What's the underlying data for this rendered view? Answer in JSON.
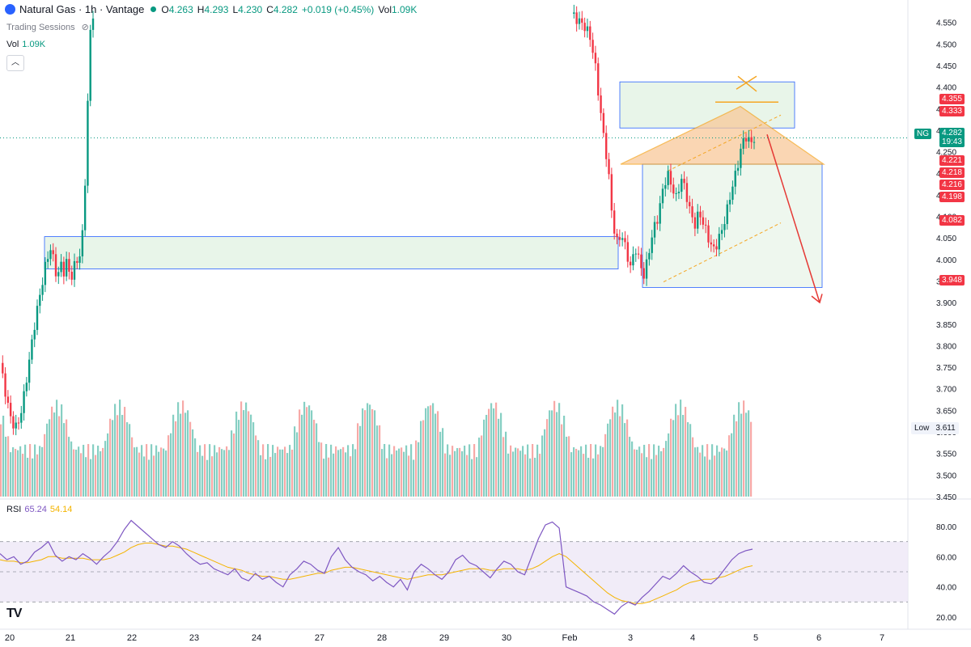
{
  "header": {
    "symbol": "Natural Gas · 1h · Vantage",
    "o_label": "O",
    "o_value": "4.263",
    "h_label": "H",
    "h_value": "4.293",
    "l_label": "L",
    "l_value": "4.230",
    "c_label": "C",
    "c_value": "4.282",
    "change": "+0.019 (+0.45%)",
    "vol_label": "Vol",
    "vol_value": "1.09K"
  },
  "trading_sessions": "Trading Sessions",
  "volume_indicator": {
    "label": "Vol",
    "value": "1.09K"
  },
  "collapse_icon": "chevron-up-icon",
  "rsi": {
    "label": "RSI",
    "value": "65.24",
    "ma_value": "54.14"
  },
  "watermark": "TV",
  "colors": {
    "up": "#089981",
    "down": "#f23645",
    "zone_fill": "#e8f5e9",
    "zone_border": "#2962ff",
    "triangle": "#f5a623",
    "arrow": "#e53935",
    "rsi": "#7e57c2",
    "rsi_ma": "#f4b400"
  },
  "price_labels": {
    "l4355": "4.355",
    "l4333": "4.333",
    "l4221": "4.221",
    "l4218": "4.218",
    "l4216": "4.216",
    "l4198": "4.198",
    "l4082": "4.082",
    "l3948": "3.948",
    "ng": "NG",
    "current": "4.282",
    "countdown": "19:43",
    "low_label": "Low",
    "low_value": "3.611"
  },
  "chart_data": {
    "type": "candlestick",
    "price_axis_ticks": [
      "4.550",
      "4.500",
      "4.450",
      "4.400",
      "4.350",
      "4.300",
      "4.250",
      "4.200",
      "4.150",
      "4.100",
      "4.050",
      "4.000",
      "3.950",
      "3.900",
      "3.850",
      "3.800",
      "3.750",
      "3.700",
      "3.650",
      "3.600",
      "3.550",
      "3.500",
      "3.450"
    ],
    "price_range": [
      3.45,
      4.57
    ],
    "rsi_axis_ticks": [
      "80.00",
      "60.00",
      "40.00",
      "20.00"
    ],
    "rsi_range": [
      15,
      90
    ],
    "rsi_bands": [
      30,
      70
    ],
    "x_axis_labels": [
      "20",
      "21",
      "22",
      "23",
      "24",
      "27",
      "28",
      "29",
      "30",
      "Feb",
      "3",
      "4",
      "5",
      "6",
      "7"
    ],
    "price_path": [
      [
        0,
        3.76
      ],
      [
        1,
        3.72
      ],
      [
        2,
        3.68
      ],
      [
        3,
        3.64
      ],
      [
        4,
        3.62
      ],
      [
        5,
        3.61
      ],
      [
        6,
        3.63
      ],
      [
        7,
        3.66
      ],
      [
        8,
        3.71
      ],
      [
        9,
        3.76
      ],
      [
        10,
        3.81
      ],
      [
        11,
        3.86
      ],
      [
        12,
        3.9
      ],
      [
        13,
        3.94
      ],
      [
        14,
        3.98
      ],
      [
        15,
        4.01
      ],
      [
        16,
        4.03
      ],
      [
        17,
        3.98
      ],
      [
        18,
        3.96
      ],
      [
        19,
        3.99
      ],
      [
        20,
        3.97
      ],
      [
        21,
        4.0
      ],
      [
        22,
        3.95
      ],
      [
        23,
        3.98
      ],
      [
        24,
        4.0
      ],
      [
        25,
        4.01
      ],
      [
        26,
        4.08
      ],
      [
        27,
        4.28
      ],
      [
        28,
        4.52
      ],
      [
        29,
        4.57
      ],
      [
        30,
        4.57
      ],
      [
        31,
        4.56
      ],
      [
        32,
        4.55
      ],
      [
        33,
        4.54
      ],
      [
        34,
        4.52
      ],
      [
        35,
        4.47
      ],
      [
        36,
        4.38
      ],
      [
        37,
        4.29
      ],
      [
        38,
        4.22
      ],
      [
        39,
        4.09
      ],
      [
        40,
        4.04
      ],
      [
        41,
        4.06
      ],
      [
        42,
        4.02
      ],
      [
        43,
        3.98
      ],
      [
        44,
        4.03
      ],
      [
        45,
        3.99
      ],
      [
        46,
        3.96
      ],
      [
        47,
        4.02
      ],
      [
        48,
        4.07
      ],
      [
        49,
        4.1
      ],
      [
        50,
        4.16
      ],
      [
        51,
        4.2
      ],
      [
        52,
        4.17
      ],
      [
        53,
        4.14
      ],
      [
        54,
        4.19
      ],
      [
        55,
        4.16
      ],
      [
        56,
        4.11
      ],
      [
        57,
        4.08
      ],
      [
        58,
        4.11
      ],
      [
        59,
        4.08
      ],
      [
        60,
        4.05
      ],
      [
        61,
        4.02
      ],
      [
        62,
        4.04
      ],
      [
        63,
        4.07
      ],
      [
        64,
        4.11
      ],
      [
        65,
        4.16
      ],
      [
        66,
        4.2
      ],
      [
        67,
        4.25
      ],
      [
        68,
        4.29
      ],
      [
        69,
        4.27
      ],
      [
        70,
        4.28
      ]
    ],
    "rsi_values": [
      62,
      58,
      60,
      55,
      57,
      63,
      66,
      70,
      61,
      57,
      60,
      58,
      62,
      59,
      55,
      60,
      64,
      70,
      78,
      84,
      80,
      76,
      72,
      68,
      66,
      70,
      67,
      62,
      58,
      55,
      56,
      52,
      50,
      48,
      52,
      46,
      44,
      49,
      45,
      47,
      43,
      40,
      48,
      52,
      57,
      55,
      51,
      49,
      60,
      66,
      58,
      53,
      50,
      48,
      44,
      47,
      43,
      40,
      45,
      38,
      50,
      55,
      52,
      48,
      45,
      50,
      58,
      61,
      56,
      54,
      50,
      46,
      52,
      57,
      55,
      50,
      48,
      60,
      72,
      81,
      83,
      79,
      40,
      38,
      36,
      34,
      30,
      28,
      25,
      22,
      27,
      30,
      28,
      33,
      37,
      42,
      47,
      45,
      49,
      54,
      50,
      47,
      43,
      42,
      46,
      52,
      58,
      62,
      64,
      65
    ],
    "rsi_ma_values": [
      58,
      57,
      57,
      56,
      56,
      57,
      58,
      60,
      60,
      59,
      59,
      59,
      59,
      58,
      58,
      58,
      59,
      61,
      63,
      66,
      68,
      69,
      69,
      68,
      67,
      67,
      66,
      65,
      63,
      61,
      59,
      57,
      55,
      53,
      52,
      51,
      49,
      48,
      47,
      47,
      46,
      45,
      45,
      46,
      47,
      48,
      49,
      49,
      51,
      52,
      53,
      53,
      52,
      51,
      50,
      49,
      48,
      47,
      46,
      45,
      46,
      47,
      48,
      48,
      48,
      49,
      50,
      51,
      52,
      52,
      52,
      51,
      51,
      52,
      52,
      52,
      51,
      52,
      54,
      57,
      60,
      62,
      60,
      56,
      52,
      48,
      44,
      40,
      36,
      33,
      31,
      30,
      29,
      29,
      30,
      32,
      34,
      36,
      38,
      41,
      43,
      44,
      45,
      45,
      46,
      47,
      49,
      51,
      53,
      54
    ]
  }
}
